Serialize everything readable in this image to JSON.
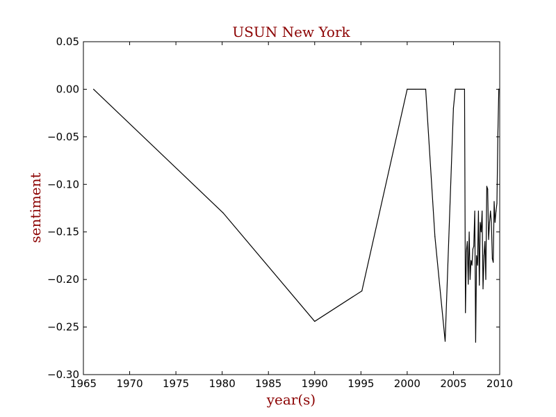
{
  "chart_data": {
    "type": "line",
    "title": "USUN New York",
    "xlabel": "year(s)",
    "ylabel": "sentiment",
    "xlim": [
      1965,
      2010
    ],
    "ylim": [
      -0.3,
      0.05
    ],
    "xticks": [
      "1965",
      "1970",
      "1975",
      "1980",
      "1985",
      "1990",
      "1995",
      "2000",
      "2005",
      "2010"
    ],
    "yticks": [
      "0.05",
      "0.00",
      "−0.05",
      "−0.10",
      "−0.15",
      "−0.20",
      "−0.25",
      "−0.30"
    ],
    "grid": false,
    "line_color": "#000000",
    "label_color": "#8b0000",
    "series": [
      {
        "x": [
          1966.1,
          1980.1,
          1990.0,
          1995.1,
          2000.0,
          2002.0,
          2003.0,
          2004.1,
          2005.0,
          2005.2,
          2006.2,
          2006.3,
          2006.4,
          2006.5,
          2006.6,
          2006.7,
          2006.8,
          2006.9,
          2007.0,
          2007.1,
          2007.2,
          2007.3,
          2007.4,
          2007.5,
          2007.6,
          2007.7,
          2007.8,
          2007.9,
          2008.0,
          2008.1,
          2008.2,
          2008.3,
          2008.4,
          2008.5,
          2008.6,
          2008.7,
          2008.8,
          2008.9,
          2009.0,
          2009.1,
          2009.2,
          2009.3,
          2009.4,
          2009.5,
          2009.6,
          2009.7,
          2009.8,
          2009.9,
          2010.0
        ],
        "y": [
          0.0,
          -0.13,
          -0.244,
          -0.212,
          0.0,
          0.0,
          -0.155,
          -0.265,
          -0.02,
          0.0,
          0.0,
          -0.235,
          -0.17,
          -0.16,
          -0.205,
          -0.15,
          -0.2,
          -0.18,
          -0.185,
          -0.168,
          -0.165,
          -0.128,
          -0.266,
          -0.175,
          -0.185,
          -0.128,
          -0.206,
          -0.14,
          -0.15,
          -0.128,
          -0.21,
          -0.175,
          -0.16,
          -0.2,
          -0.102,
          -0.105,
          -0.158,
          -0.14,
          -0.128,
          -0.14,
          -0.178,
          -0.182,
          -0.118,
          -0.14,
          -0.128,
          -0.12,
          -0.05,
          0.0,
          0.0
        ]
      }
    ]
  }
}
